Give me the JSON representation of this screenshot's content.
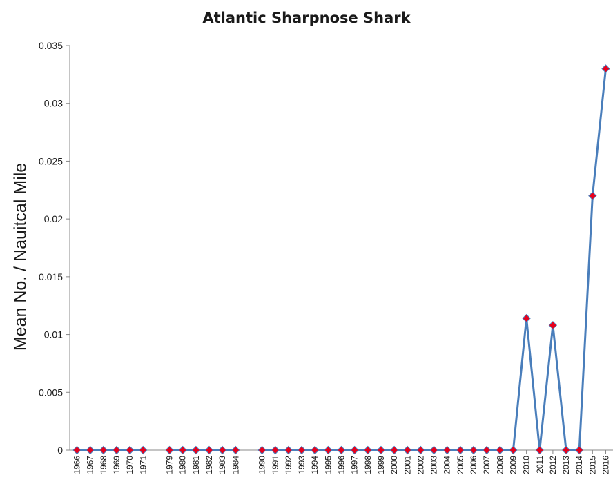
{
  "chart_data": {
    "type": "line",
    "title": "Atlantic Sharpnose Shark",
    "xlabel": "",
    "ylabel": "Mean No. / Nauitcal Mile",
    "ylim": [
      0,
      0.035
    ],
    "yticks": [
      "0",
      "0.005",
      "0.01",
      "0.015",
      "0.02",
      "0.025",
      "0.03",
      "0.035"
    ],
    "grid": false,
    "legend": "none",
    "line_color": "#4a7ebb",
    "marker_color": "#e8001c",
    "marker": "diamond",
    "segments": [
      {
        "x": [
          "1966",
          "1967",
          "1968",
          "1969",
          "1970",
          "1971"
        ],
        "values": [
          0,
          0,
          0,
          0,
          0,
          0
        ]
      },
      {
        "x": [
          "1979",
          "1980",
          "1981",
          "1982",
          "1983",
          "1984"
        ],
        "values": [
          0,
          0,
          0,
          0,
          0,
          0
        ]
      },
      {
        "x": [
          "1990",
          "1991",
          "1992",
          "1993",
          "1994",
          "1995",
          "1996",
          "1997",
          "1998",
          "1999",
          "2000",
          "2001",
          "2002",
          "2003",
          "2004",
          "2005",
          "2006",
          "2007",
          "2008",
          "2009",
          "2010",
          "2011",
          "2012",
          "2013",
          "2014",
          "2015",
          "2016"
        ],
        "values": [
          0,
          0,
          0,
          0,
          0,
          0,
          0,
          0,
          0,
          0,
          0,
          0,
          0,
          0,
          0,
          0,
          0,
          0,
          0,
          0,
          0.0114,
          0,
          0.0108,
          0,
          0,
          0.022,
          0.033
        ]
      }
    ]
  }
}
